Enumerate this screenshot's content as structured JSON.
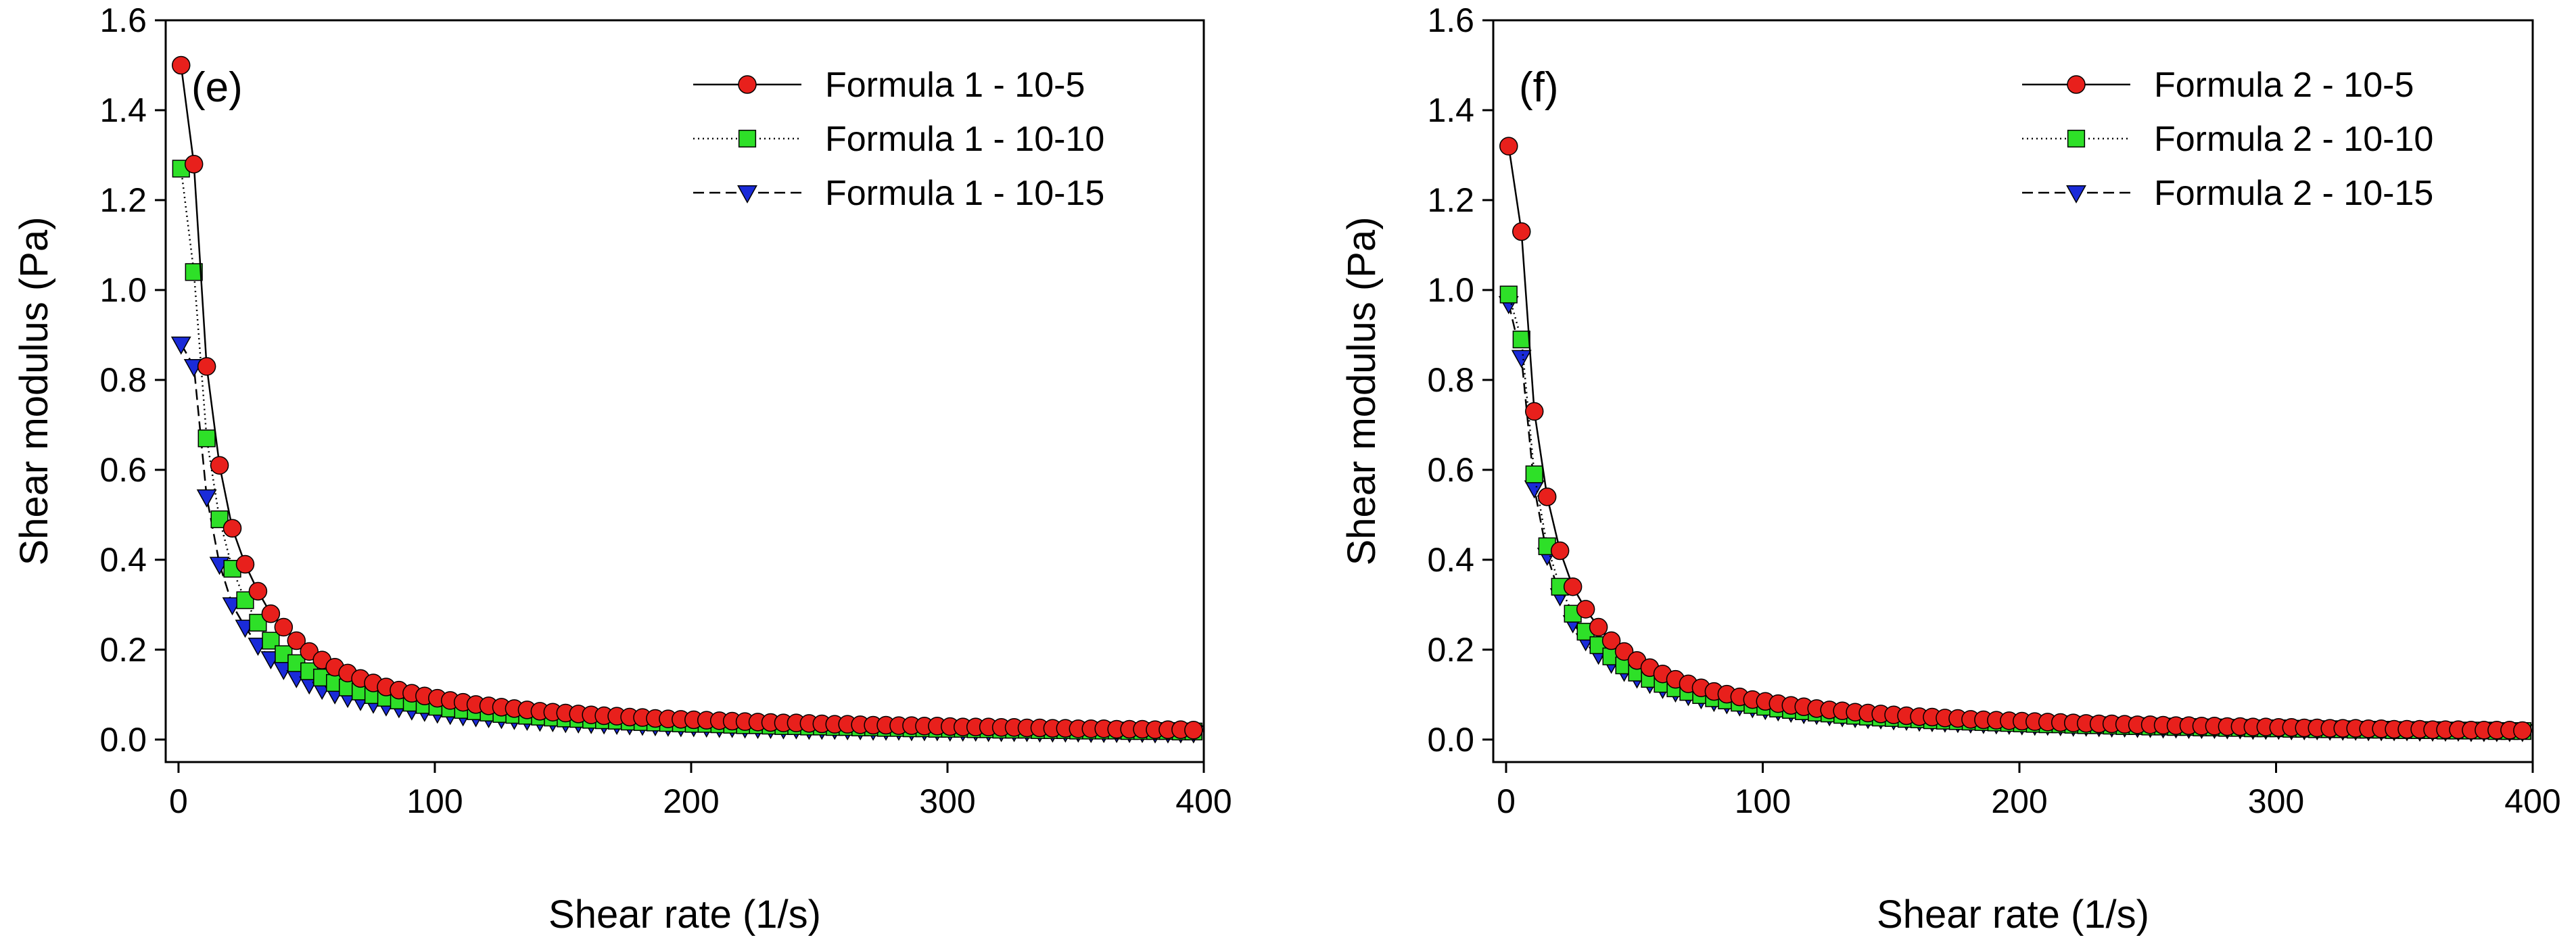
{
  "chart_data": [
    {
      "type": "line",
      "panel_label": "(e)",
      "xlabel": "Shear rate (1/s)",
      "ylabel": "Shear modulus (Pa)",
      "xlim": [
        -5,
        400
      ],
      "ylim": [
        -0.05,
        1.6
      ],
      "xticks": [
        0,
        100,
        200,
        300,
        400
      ],
      "yticks": [
        0.0,
        0.2,
        0.4,
        0.6,
        0.8,
        1.0,
        1.2,
        1.4,
        1.6
      ],
      "grid": false,
      "legend_position": "top-right",
      "series": [
        {
          "name": "Formula 1 - 10-5",
          "marker": "circle",
          "color": "#e8201c",
          "line_style": "solid",
          "x": [
            1,
            6,
            11,
            16,
            21,
            26,
            31,
            36,
            41,
            46,
            51,
            56,
            61,
            66,
            71,
            76,
            81,
            86,
            91,
            96,
            101,
            106,
            111,
            116,
            121,
            126,
            131,
            136,
            141,
            146,
            151,
            156,
            161,
            166,
            171,
            176,
            181,
            186,
            191,
            196,
            201,
            206,
            211,
            216,
            221,
            226,
            231,
            236,
            241,
            246,
            251,
            256,
            261,
            266,
            271,
            276,
            281,
            286,
            291,
            296,
            301,
            306,
            311,
            316,
            321,
            326,
            331,
            336,
            341,
            346,
            351,
            356,
            361,
            366,
            371,
            376,
            381,
            386,
            391,
            396
          ],
          "y": [
            1.5,
            1.28,
            0.83,
            0.61,
            0.47,
            0.39,
            0.33,
            0.28,
            0.25,
            0.22,
            0.196,
            0.177,
            0.161,
            0.148,
            0.136,
            0.126,
            0.117,
            0.11,
            0.103,
            0.097,
            0.092,
            0.087,
            0.083,
            0.078,
            0.075,
            0.072,
            0.069,
            0.066,
            0.063,
            0.061,
            0.059,
            0.057,
            0.055,
            0.053,
            0.052,
            0.05,
            0.049,
            0.047,
            0.046,
            0.045,
            0.044,
            0.043,
            0.042,
            0.041,
            0.04,
            0.039,
            0.038,
            0.037,
            0.037,
            0.036,
            0.035,
            0.034,
            0.034,
            0.033,
            0.032,
            0.032,
            0.031,
            0.031,
            0.03,
            0.03,
            0.029,
            0.028,
            0.028,
            0.028,
            0.027,
            0.027,
            0.026,
            0.026,
            0.025,
            0.025,
            0.024,
            0.024,
            0.024,
            0.023,
            0.023,
            0.023,
            0.022,
            0.022,
            0.022,
            0.021
          ]
        },
        {
          "name": "Formula 1 - 10-10",
          "marker": "square",
          "color": "#2ee028",
          "line_style": "dotted",
          "x": [
            1,
            6,
            11,
            16,
            21,
            26,
            31,
            36,
            41,
            46,
            51,
            56,
            61,
            66,
            71,
            76,
            81,
            86,
            91,
            96,
            101,
            106,
            111,
            116,
            121,
            126,
            131,
            136,
            141,
            146,
            151,
            156,
            161,
            166,
            171,
            176,
            181,
            186,
            191,
            196,
            201,
            206,
            211,
            216,
            221,
            226,
            231,
            236,
            241,
            246,
            251,
            256,
            261,
            266,
            271,
            276,
            281,
            286,
            291,
            296,
            301,
            306,
            311,
            316,
            321,
            326,
            331,
            336,
            341,
            346,
            351,
            356,
            361,
            366,
            371,
            376,
            381,
            386,
            391,
            396
          ],
          "y": [
            1.27,
            1.04,
            0.67,
            0.49,
            0.38,
            0.31,
            0.26,
            0.22,
            0.19,
            0.17,
            0.152,
            0.138,
            0.126,
            0.116,
            0.107,
            0.099,
            0.093,
            0.087,
            0.082,
            0.077,
            0.073,
            0.069,
            0.066,
            0.063,
            0.06,
            0.057,
            0.055,
            0.053,
            0.051,
            0.049,
            0.047,
            0.046,
            0.044,
            0.043,
            0.042,
            0.04,
            0.039,
            0.038,
            0.037,
            0.036,
            0.035,
            0.035,
            0.034,
            0.033,
            0.032,
            0.032,
            0.031,
            0.03,
            0.03,
            0.029,
            0.029,
            0.028,
            0.028,
            0.027,
            0.027,
            0.026,
            0.026,
            0.025,
            0.025,
            0.024,
            0.024,
            0.024,
            0.023,
            0.023,
            0.022,
            0.022,
            0.022,
            0.021,
            0.021,
            0.021,
            0.02,
            0.02,
            0.02,
            0.02,
            0.019,
            0.019,
            0.019,
            0.019,
            0.018,
            0.018
          ]
        },
        {
          "name": "Formula 1 - 10-15",
          "marker": "triangle-down",
          "color": "#1a2bd9",
          "line_style": "dashed",
          "x": [
            1,
            6,
            11,
            16,
            21,
            26,
            31,
            36,
            41,
            46,
            51,
            56,
            61,
            66,
            71,
            76,
            81,
            86,
            91,
            96,
            101,
            106,
            111,
            116,
            121,
            126,
            131,
            136,
            141,
            146,
            151,
            156,
            161,
            166,
            171,
            176,
            181,
            186,
            191,
            196,
            201,
            206,
            211,
            216,
            221,
            226,
            231,
            236,
            241,
            246,
            251,
            256,
            261,
            266,
            271,
            276,
            281,
            286,
            291,
            296,
            301,
            306,
            311,
            316,
            321,
            326,
            331,
            336,
            341,
            346,
            351,
            356,
            361,
            366,
            371,
            376,
            381,
            386,
            391,
            396
          ],
          "y": [
            0.88,
            0.83,
            0.54,
            0.39,
            0.3,
            0.25,
            0.21,
            0.18,
            0.156,
            0.138,
            0.124,
            0.112,
            0.102,
            0.094,
            0.087,
            0.081,
            0.075,
            0.071,
            0.066,
            0.063,
            0.059,
            0.056,
            0.053,
            0.051,
            0.049,
            0.047,
            0.045,
            0.043,
            0.041,
            0.04,
            0.038,
            0.037,
            0.036,
            0.035,
            0.034,
            0.033,
            0.032,
            0.031,
            0.03,
            0.029,
            0.029,
            0.028,
            0.027,
            0.027,
            0.026,
            0.025,
            0.025,
            0.024,
            0.024,
            0.023,
            0.023,
            0.023,
            0.022,
            0.022,
            0.021,
            0.021,
            0.021,
            0.02,
            0.02,
            0.02,
            0.019,
            0.019,
            0.019,
            0.018,
            0.018,
            0.018,
            0.018,
            0.017,
            0.017,
            0.017,
            0.017,
            0.016,
            0.016,
            0.016,
            0.016,
            0.016,
            0.015,
            0.015,
            0.015,
            0.015
          ]
        }
      ]
    },
    {
      "type": "line",
      "panel_label": "(f)",
      "xlabel": "Shear rate (1/s)",
      "ylabel": "Shear modulus (Pa)",
      "xlim": [
        -5,
        400
      ],
      "ylim": [
        -0.05,
        1.6
      ],
      "xticks": [
        0,
        100,
        200,
        300,
        400
      ],
      "yticks": [
        0.0,
        0.2,
        0.4,
        0.6,
        0.8,
        1.0,
        1.2,
        1.4,
        1.6
      ],
      "grid": false,
      "legend_position": "top-right",
      "series": [
        {
          "name": "Formula 2 - 10-5",
          "marker": "circle",
          "color": "#e8201c",
          "line_style": "solid",
          "x": [
            1,
            6,
            11,
            16,
            21,
            26,
            31,
            36,
            41,
            46,
            51,
            56,
            61,
            66,
            71,
            76,
            81,
            86,
            91,
            96,
            101,
            106,
            111,
            116,
            121,
            126,
            131,
            136,
            141,
            146,
            151,
            156,
            161,
            166,
            171,
            176,
            181,
            186,
            191,
            196,
            201,
            206,
            211,
            216,
            221,
            226,
            231,
            236,
            241,
            246,
            251,
            256,
            261,
            266,
            271,
            276,
            281,
            286,
            291,
            296,
            301,
            306,
            311,
            316,
            321,
            326,
            331,
            336,
            341,
            346,
            351,
            356,
            361,
            366,
            371,
            376,
            381,
            386,
            391,
            396
          ],
          "y": [
            1.32,
            1.13,
            0.73,
            0.54,
            0.42,
            0.34,
            0.29,
            0.25,
            0.22,
            0.196,
            0.176,
            0.16,
            0.146,
            0.134,
            0.124,
            0.115,
            0.107,
            0.101,
            0.095,
            0.089,
            0.085,
            0.08,
            0.076,
            0.073,
            0.069,
            0.066,
            0.064,
            0.061,
            0.059,
            0.057,
            0.055,
            0.053,
            0.051,
            0.05,
            0.048,
            0.047,
            0.045,
            0.044,
            0.043,
            0.042,
            0.041,
            0.04,
            0.039,
            0.038,
            0.037,
            0.036,
            0.035,
            0.035,
            0.034,
            0.033,
            0.033,
            0.032,
            0.031,
            0.031,
            0.03,
            0.03,
            0.029,
            0.029,
            0.028,
            0.028,
            0.027,
            0.027,
            0.026,
            0.026,
            0.025,
            0.025,
            0.025,
            0.024,
            0.024,
            0.023,
            0.023,
            0.023,
            0.022,
            0.022,
            0.022,
            0.021,
            0.021,
            0.021,
            0.021,
            0.02
          ]
        },
        {
          "name": "Formula 2 - 10-10",
          "marker": "square",
          "color": "#2ee028",
          "line_style": "dotted",
          "x": [
            1,
            6,
            11,
            16,
            21,
            26,
            31,
            36,
            41,
            46,
            51,
            56,
            61,
            66,
            71,
            76,
            81,
            86,
            91,
            96,
            101,
            106,
            111,
            116,
            121,
            126,
            131,
            136,
            141,
            146,
            151,
            156,
            161,
            166,
            171,
            176,
            181,
            186,
            191,
            196,
            201,
            206,
            211,
            216,
            221,
            226,
            231,
            236,
            241,
            246,
            251,
            256,
            261,
            266,
            271,
            276,
            281,
            286,
            291,
            296,
            301,
            306,
            311,
            316,
            321,
            326,
            331,
            336,
            341,
            346,
            351,
            356,
            361,
            366,
            371,
            376,
            381,
            386,
            391,
            396
          ],
          "y": [
            0.99,
            0.89,
            0.59,
            0.43,
            0.34,
            0.28,
            0.24,
            0.21,
            0.185,
            0.165,
            0.149,
            0.135,
            0.124,
            0.114,
            0.106,
            0.099,
            0.092,
            0.087,
            0.082,
            0.077,
            0.073,
            0.069,
            0.066,
            0.063,
            0.06,
            0.058,
            0.055,
            0.053,
            0.051,
            0.049,
            0.048,
            0.046,
            0.045,
            0.043,
            0.042,
            0.041,
            0.04,
            0.039,
            0.038,
            0.037,
            0.036,
            0.035,
            0.034,
            0.034,
            0.033,
            0.032,
            0.032,
            0.031,
            0.03,
            0.03,
            0.029,
            0.029,
            0.028,
            0.028,
            0.027,
            0.027,
            0.026,
            0.026,
            0.025,
            0.025,
            0.025,
            0.024,
            0.024,
            0.023,
            0.023,
            0.023,
            0.022,
            0.022,
            0.022,
            0.021,
            0.021,
            0.021,
            0.021,
            0.02,
            0.02,
            0.02,
            0.02,
            0.019,
            0.019,
            0.019
          ]
        },
        {
          "name": "Formula 2 - 10-15",
          "marker": "triangle-down",
          "color": "#1a2bd9",
          "line_style": "dashed",
          "x": [
            1,
            6,
            11,
            16,
            21,
            26,
            31,
            36,
            41,
            46,
            51,
            56,
            61,
            66,
            71,
            76,
            81,
            86,
            91,
            96,
            101,
            106,
            111,
            116,
            121,
            126,
            131,
            136,
            141,
            146,
            151,
            156,
            161,
            166,
            171,
            176,
            181,
            186,
            191,
            196,
            201,
            206,
            211,
            216,
            221,
            226,
            231,
            236,
            241,
            246,
            251,
            256,
            261,
            266,
            271,
            276,
            281,
            286,
            291,
            296,
            301,
            306,
            311,
            316,
            321,
            326,
            331,
            336,
            341,
            346,
            351,
            356,
            361,
            366,
            371,
            376,
            381,
            386,
            391,
            396
          ],
          "y": [
            0.97,
            0.85,
            0.56,
            0.41,
            0.32,
            0.26,
            0.22,
            0.19,
            0.17,
            0.152,
            0.137,
            0.125,
            0.114,
            0.106,
            0.098,
            0.091,
            0.085,
            0.08,
            0.075,
            0.071,
            0.067,
            0.064,
            0.061,
            0.058,
            0.056,
            0.053,
            0.051,
            0.049,
            0.047,
            0.046,
            0.044,
            0.043,
            0.041,
            0.04,
            0.039,
            0.038,
            0.037,
            0.036,
            0.035,
            0.034,
            0.033,
            0.032,
            0.032,
            0.031,
            0.03,
            0.03,
            0.029,
            0.028,
            0.028,
            0.027,
            0.027,
            0.026,
            0.026,
            0.025,
            0.025,
            0.025,
            0.024,
            0.024,
            0.023,
            0.023,
            0.023,
            0.022,
            0.022,
            0.022,
            0.021,
            0.021,
            0.021,
            0.02,
            0.02,
            0.02,
            0.02,
            0.019,
            0.019,
            0.019,
            0.019,
            0.018,
            0.018,
            0.018,
            0.018,
            0.018
          ]
        }
      ]
    }
  ]
}
